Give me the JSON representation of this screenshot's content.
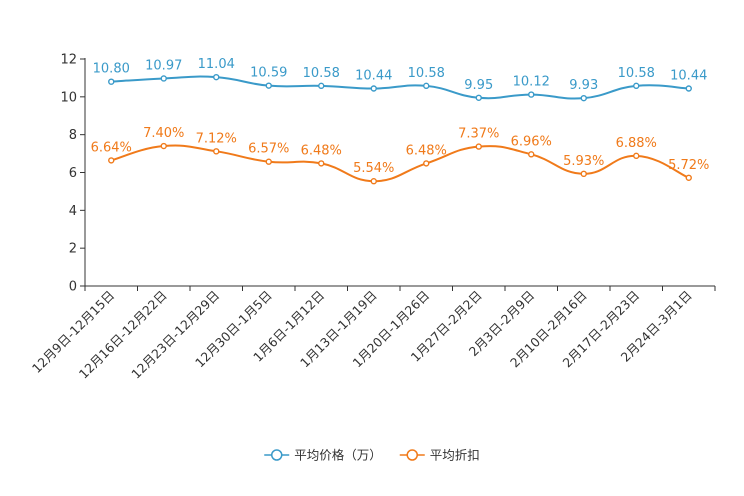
{
  "chart_data": {
    "type": "line",
    "title": "",
    "xlabel": "",
    "ylabel": "",
    "ylim": [
      0,
      12
    ],
    "yticks": [
      0,
      2,
      4,
      6,
      8,
      10,
      12
    ],
    "smooth": true,
    "legend_position": "bottom-center",
    "categories": [
      "12月9日-12月15日",
      "12月16日-12月22日",
      "12月23日-12月29日",
      "12月30日-1月5日",
      "1月6日-1月12日",
      "1月13日-1月19日",
      "1月20日-1月26日",
      "1月27日-2月2日",
      "2月3日-2月9日",
      "2月10日-2月16日",
      "2月17日-2月23日",
      "2月24日-3月1日"
    ],
    "series": [
      {
        "name": "平均价格（万）",
        "color": "#3a9ac9",
        "values": [
          10.8,
          10.97,
          11.04,
          10.59,
          10.58,
          10.44,
          10.58,
          9.95,
          10.12,
          9.93,
          10.58,
          10.44
        ],
        "labels": [
          "10.80",
          "10.97",
          "11.04",
          "10.59",
          "10.58",
          "10.44",
          "10.58",
          "9.95",
          "10.12",
          "9.93",
          "10.58",
          "10.44"
        ]
      },
      {
        "name": "平均折扣",
        "color": "#f07a1a",
        "values": [
          6.64,
          7.4,
          7.12,
          6.57,
          6.48,
          5.54,
          6.48,
          7.37,
          6.96,
          5.93,
          6.88,
          5.72
        ],
        "labels": [
          "6.64%",
          "7.40%",
          "7.12%",
          "6.57%",
          "6.48%",
          "5.54%",
          "6.48%",
          "7.37%",
          "6.96%",
          "5.93%",
          "6.88%",
          "5.72%"
        ]
      }
    ]
  }
}
